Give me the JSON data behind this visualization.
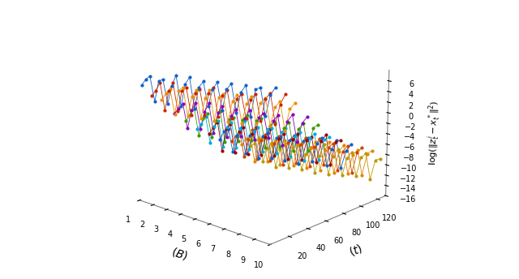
{
  "ylabel": "$\\log(\\|z_t^i - x_t^*\\|^2)$",
  "xlabel_B": "$(B)$",
  "xlabel_t": "$(t)$",
  "B_ticks": [
    1,
    2,
    3,
    4,
    5,
    6,
    7,
    8,
    9,
    10
  ],
  "t_ticks": [
    20,
    40,
    60,
    80,
    100,
    120
  ],
  "z_ticks": [
    -16,
    -14,
    -12,
    -10,
    -8,
    -6,
    -4,
    -2,
    0,
    2,
    4,
    6
  ],
  "series_colors": [
    "#1060c8",
    "#cc2200",
    "#e89000",
    "#8800bb",
    "#3a9a00",
    "#00aadd",
    "#990000",
    "#1060cc",
    "#cc4400",
    "#dd8800",
    "#bb9900"
  ],
  "t_depths": [
    5,
    15,
    25,
    38,
    50,
    62,
    75,
    87,
    100,
    112,
    122
  ],
  "base_levels": [
    5.5,
    3.5,
    2.0,
    -1.5,
    -3.5,
    -6.0,
    -7.5,
    -9.0,
    -10.5,
    -12.0,
    -13.5
  ],
  "n_B_points": 30,
  "batch_size": 3,
  "sawtooth_rise": 1.2,
  "batch_trend": 0.38,
  "drop_magnitude": 2.8,
  "noise_std": 0.28,
  "seed": 77,
  "elev": 18,
  "azim": -48,
  "xlim": [
    1,
    10
  ],
  "ylim": [
    0,
    130
  ],
  "zlim": [
    -16,
    8
  ],
  "figsize": [
    6.4,
    3.44
  ],
  "dpi": 100
}
